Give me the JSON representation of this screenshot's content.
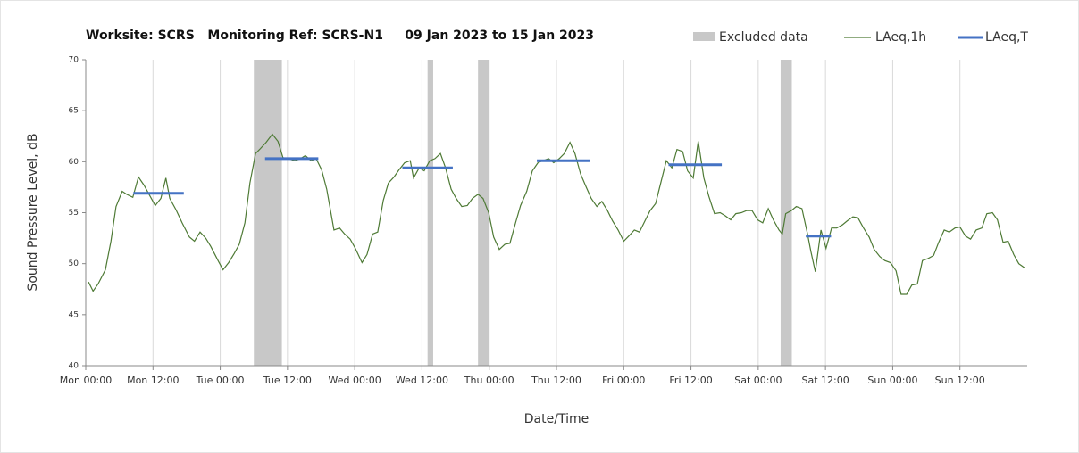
{
  "chart_data": {
    "type": "line",
    "title": "Worksite: SCRS   Monitoring Ref: SCRS-N1     09 Jan 2023 to 15 Jan 2023",
    "x_label": "Date/Time",
    "y_label": "Sound Pressure Level, dB",
    "xlim": [
      0,
      168
    ],
    "xticks": [
      {
        "value": 0,
        "label": "Mon 00:00"
      },
      {
        "value": 12,
        "label": "Mon 12:00"
      },
      {
        "value": 24,
        "label": "Tue 00:00"
      },
      {
        "value": 36,
        "label": "Tue 12:00"
      },
      {
        "value": 48,
        "label": "Wed 00:00"
      },
      {
        "value": 60,
        "label": "Wed 12:00"
      },
      {
        "value": 72,
        "label": "Thu 00:00"
      },
      {
        "value": 84,
        "label": "Thu 12:00"
      },
      {
        "value": 96,
        "label": "Fri 00:00"
      },
      {
        "value": 108,
        "label": "Fri 12:00"
      },
      {
        "value": 120,
        "label": "Sat 00:00"
      },
      {
        "value": 132,
        "label": "Sat 12:00"
      },
      {
        "value": 144,
        "label": "Sun 00:00"
      },
      {
        "value": 156,
        "label": "Sun 12:00"
      }
    ],
    "ylim": [
      40,
      70
    ],
    "yticks": [
      40,
      45,
      50,
      55,
      60,
      65,
      70
    ],
    "grid": "x",
    "legend": "top-right",
    "excluded": {
      "name": "Excluded data",
      "color": "#c8c8c8",
      "ranges": [
        [
          30,
          35
        ],
        [
          61,
          62
        ],
        [
          70,
          72
        ],
        [
          124,
          126
        ]
      ]
    },
    "series": [
      {
        "name": "LAeq,1h",
        "color": "#4e7a35",
        "x": [
          0.5,
          1.3,
          2.2,
          3.5,
          4.5,
          5.4,
          6.5,
          7.3,
          8.4,
          9.4,
          10.4,
          11.3,
          12.4,
          13.4,
          14.3,
          15.0,
          16.1,
          17.2,
          18.5,
          19.4,
          20.4,
          21.4,
          22.3,
          23.6,
          24.5,
          25.5,
          26.5,
          27.4,
          28.4,
          29.3,
          30.3,
          31.2,
          32.2,
          33.3,
          34.3,
          35.2,
          36.2,
          37.3,
          38.3,
          39.2,
          40.2,
          41.1,
          42.1,
          43.0,
          44.3,
          45.3,
          46.2,
          47.2,
          48.1,
          49.3,
          50.2,
          51.2,
          52.1,
          53.1,
          54.0,
          55.0,
          55.9,
          56.9,
          57.9,
          58.5,
          59.5,
          60.4,
          61.4,
          62.3,
          63.3,
          64.2,
          65.2,
          66.1,
          67.1,
          68.1,
          69.0,
          70.0,
          70.9,
          71.9,
          72.8,
          73.8,
          74.8,
          75.7,
          76.7,
          77.6,
          78.7,
          79.7,
          80.7,
          81.6,
          82.6,
          83.5,
          84.5,
          85.4,
          86.4,
          87.3,
          88.3,
          89.3,
          90.2,
          91.2,
          92.1,
          93.1,
          94.0,
          95.0,
          96.0,
          96.9,
          97.9,
          98.8,
          99.8,
          100.7,
          101.7,
          102.6,
          103.6,
          104.6,
          105.5,
          106.5,
          107.4,
          108.4,
          109.3,
          110.3,
          111.2,
          112.2,
          113.2,
          114.1,
          115.1,
          116.0,
          117.0,
          117.9,
          118.9,
          119.9,
          120.8,
          121.8,
          122.7,
          123.7,
          124.3,
          124.9,
          125.9,
          126.8,
          127.8,
          128.8,
          129.4,
          130.2,
          131.2,
          132.1,
          133.1,
          134.0,
          135.0,
          135.9,
          136.9,
          137.8,
          138.8,
          139.8,
          140.7,
          141.7,
          142.6,
          143.6,
          144.6,
          145.5,
          146.5,
          147.4,
          148.4,
          149.3,
          150.3,
          151.3,
          152.2,
          153.2,
          154.1,
          155.1,
          156.0,
          157.0,
          157.9,
          158.9,
          159.9,
          160.8,
          161.8,
          162.7,
          163.7,
          164.6,
          165.6,
          166.5,
          167.5
        ],
        "values": [
          48.2,
          47.3,
          48.0,
          49.4,
          52.2,
          55.6,
          57.1,
          56.8,
          56.5,
          58.5,
          57.7,
          56.8,
          55.7,
          56.4,
          58.4,
          56.4,
          55.3,
          54.0,
          52.6,
          52.2,
          53.1,
          52.5,
          51.7,
          50.3,
          49.4,
          50.1,
          51.0,
          51.9,
          54.0,
          57.9,
          60.8,
          61.3,
          61.9,
          62.7,
          62.0,
          60.4,
          60.3,
          60.1,
          60.3,
          60.6,
          60.1,
          60.3,
          59.2,
          57.3,
          53.3,
          53.5,
          52.9,
          52.4,
          51.5,
          50.1,
          50.9,
          52.9,
          53.1,
          56.2,
          57.9,
          58.5,
          59.2,
          59.9,
          60.1,
          58.4,
          59.4,
          59.1,
          60.1,
          60.3,
          60.8,
          59.4,
          57.3,
          56.4,
          55.6,
          55.7,
          56.4,
          56.8,
          56.4,
          55.0,
          52.6,
          51.4,
          51.9,
          52.0,
          54.0,
          55.7,
          57.1,
          59.1,
          59.9,
          60.1,
          60.3,
          59.9,
          60.3,
          60.8,
          61.9,
          60.8,
          58.8,
          57.5,
          56.4,
          55.6,
          56.1,
          55.2,
          54.2,
          53.3,
          52.2,
          52.7,
          53.3,
          53.1,
          54.2,
          55.2,
          55.9,
          57.9,
          60.1,
          59.4,
          61.2,
          61.0,
          59.1,
          58.4,
          62.0,
          58.4,
          56.6,
          54.9,
          55.0,
          54.7,
          54.3,
          54.9,
          55.0,
          55.2,
          55.2,
          54.3,
          54.0,
          55.4,
          54.3,
          53.3,
          52.9,
          54.9,
          55.2,
          55.6,
          55.4,
          52.9,
          51.2,
          49.2,
          53.3,
          51.5,
          53.5,
          53.5,
          53.8,
          54.2,
          54.6,
          54.5,
          53.5,
          52.6,
          51.4,
          50.7,
          50.3,
          50.1,
          49.3,
          47.0,
          47.0,
          47.9,
          48.0,
          50.3,
          50.5,
          50.8,
          52.1,
          53.3,
          53.1,
          53.5,
          53.6,
          52.7,
          52.4,
          53.3,
          53.5,
          54.9,
          55.0,
          54.3,
          52.1,
          52.2,
          50.9,
          50.0,
          49.6
        ]
      }
    ],
    "segments": {
      "name": "LAeq,T",
      "color": "#4472c4",
      "ranges": [
        [
          8.5,
          17.5
        ],
        [
          32,
          41.5
        ],
        [
          56.5,
          65.5
        ],
        [
          80.5,
          90
        ],
        [
          104,
          113.5
        ],
        [
          128.5,
          133
        ]
      ],
      "values": [
        56.9,
        60.3,
        59.4,
        60.1,
        59.7,
        52.7
      ]
    }
  }
}
